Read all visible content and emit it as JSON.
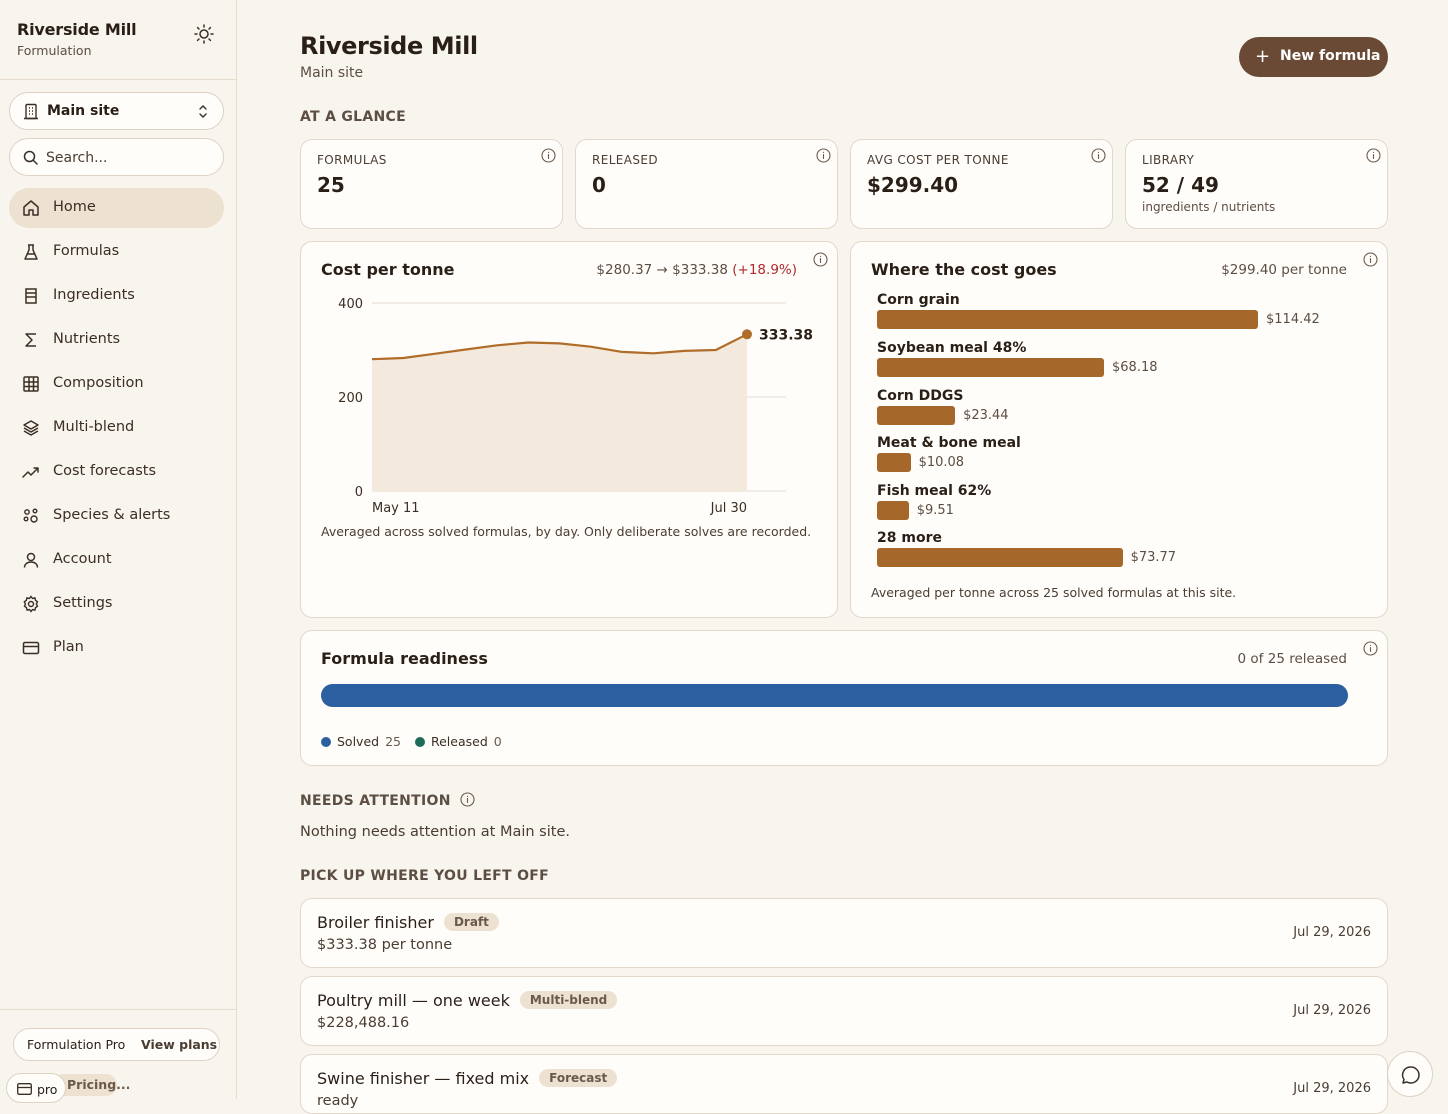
{
  "sidebar": {
    "brand_title": "Riverside Mill",
    "brand_sub": "Formulation",
    "site": "Main site",
    "search_placeholder": "Search...",
    "items": [
      {
        "label": "Home",
        "icon": "home-icon"
      },
      {
        "label": "Formulas",
        "icon": "flask-icon"
      },
      {
        "label": "Ingredients",
        "icon": "bin-icon"
      },
      {
        "label": "Nutrients",
        "icon": "sigma-icon"
      },
      {
        "label": "Composition",
        "icon": "grid-icon"
      },
      {
        "label": "Multi-blend",
        "icon": "layers-icon"
      },
      {
        "label": "Cost forecasts",
        "icon": "trend-icon"
      },
      {
        "label": "Species & alerts",
        "icon": "species-icon"
      },
      {
        "label": "Account",
        "icon": "user-icon"
      },
      {
        "label": "Settings",
        "icon": "gear-icon"
      },
      {
        "label": "Plan",
        "icon": "card-icon"
      }
    ],
    "plan_name": "Formulation Pro",
    "plan_link": "View plans",
    "pro_label": "pro",
    "pricing_label": "Pricing..."
  },
  "header": {
    "title": "Riverside Mill",
    "sub": "Main site",
    "new_button": "New formula"
  },
  "glance": {
    "heading": "AT A GLANCE",
    "stats": [
      {
        "label": "FORMULAS",
        "value": "25",
        "sub": ""
      },
      {
        "label": "RELEASED",
        "value": "0",
        "sub": ""
      },
      {
        "label": "AVG COST PER TONNE",
        "value": "$299.40",
        "sub": ""
      },
      {
        "label": "LIBRARY",
        "value": "52 / 49",
        "sub": "ingredients / nutrients"
      }
    ]
  },
  "cost_chart": {
    "title": "Cost per tonne",
    "range_text": "$280.37 → $333.38",
    "change_text": "(+18.9%)",
    "last_label": "333.38",
    "footnote": "Averaged across solved formulas, by day. Only deliberate solves are recorded."
  },
  "chart_data": {
    "type": "area",
    "title": "Cost per tonne",
    "x_tick_labels": [
      "May 11",
      "Jul 30"
    ],
    "y_ticks": [
      0,
      200,
      400
    ],
    "ylim": [
      0,
      400
    ],
    "values": [
      280.37,
      283,
      292,
      301,
      310,
      316,
      314,
      307,
      296,
      293,
      298,
      300,
      333.38
    ],
    "grid": true
  },
  "cost_breakdown": {
    "title": "Where the cost goes",
    "subtitle": "$299.40 per tonne",
    "max": 114.42,
    "items": [
      {
        "name": "Corn grain",
        "value": 114.42,
        "label": "$114.42"
      },
      {
        "name": "Soybean meal 48%",
        "value": 68.18,
        "label": "$68.18"
      },
      {
        "name": "Corn DDGS",
        "value": 23.44,
        "label": "$23.44"
      },
      {
        "name": "Meat & bone meal",
        "value": 10.08,
        "label": "$10.08"
      },
      {
        "name": "Fish meal 62%",
        "value": 9.51,
        "label": "$9.51"
      },
      {
        "name": "28 more",
        "value": 73.77,
        "label": "$73.77"
      }
    ],
    "footnote": "Averaged per tonne across 25 solved formulas at this site."
  },
  "readiness": {
    "title": "Formula readiness",
    "summary": "0 of 25 released",
    "solved_label": "Solved",
    "solved_count": "25",
    "released_label": "Released",
    "released_count": "0",
    "solved_fraction": 1.0,
    "colors": {
      "solved": "#2c5f9f",
      "released": "#1f6b5a"
    }
  },
  "attention": {
    "heading": "NEEDS ATTENTION",
    "text": "Nothing needs attention at Main site."
  },
  "recent": {
    "heading": "PICK UP WHERE YOU LEFT OFF",
    "items": [
      {
        "name": "Broiler finisher",
        "badge": "Draft",
        "sub": "$333.38 per tonne",
        "date": "Jul 29, 2026"
      },
      {
        "name": "Poultry mill — one week",
        "badge": "Multi-blend",
        "sub": "$228,488.16",
        "date": "Jul 29, 2026"
      },
      {
        "name": "Swine finisher — fixed mix",
        "badge": "Forecast",
        "sub": "ready",
        "date": "Jul 29, 2026"
      }
    ]
  },
  "colors": {
    "accent": "#6b4a35",
    "bar": "#a5672a",
    "line": "#b06d2a"
  }
}
